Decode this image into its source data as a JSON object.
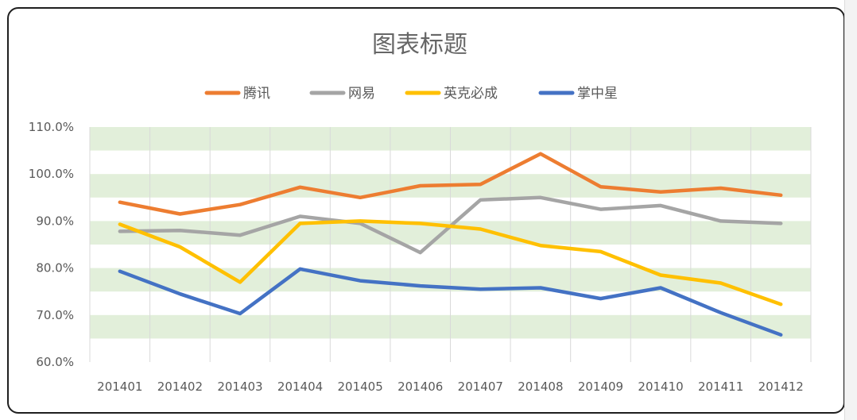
{
  "chart_data": {
    "type": "line",
    "title": "图表标题",
    "categories": [
      "201401",
      "201402",
      "201403",
      "201404",
      "201405",
      "201406",
      "201407",
      "201408",
      "201409",
      "201410",
      "201411",
      "201412"
    ],
    "y_ticks": [
      "60.0%",
      "70.0%",
      "80.0%",
      "90.0%",
      "100.0%",
      "110.0%"
    ],
    "ylim": [
      60,
      110
    ],
    "legend_position": "top",
    "grid": "alternating horizontal bands",
    "series": [
      {
        "name": "腾讯",
        "color": "#ed7d31",
        "values": [
          94.0,
          91.5,
          93.5,
          97.2,
          95.0,
          97.5,
          97.8,
          104.3,
          97.3,
          96.2,
          97.0,
          95.5
        ]
      },
      {
        "name": "网易",
        "color": "#a5a5a5",
        "values": [
          87.8,
          88.0,
          87.0,
          91.0,
          89.5,
          83.3,
          94.5,
          95.0,
          92.5,
          93.3,
          90.0,
          89.5
        ]
      },
      {
        "name": "英克必成",
        "color": "#ffc000",
        "values": [
          89.3,
          84.5,
          77.0,
          89.5,
          90.0,
          89.5,
          88.3,
          84.8,
          83.5,
          78.5,
          76.8,
          72.3
        ]
      },
      {
        "name": "掌中星",
        "color": "#4472c4",
        "values": [
          79.3,
          74.5,
          70.3,
          79.8,
          77.3,
          76.2,
          75.5,
          75.8,
          73.5,
          75.8,
          70.5,
          65.8
        ]
      }
    ],
    "colors": {
      "band": "#e2efda",
      "gridline": "#d9d9d9"
    }
  }
}
